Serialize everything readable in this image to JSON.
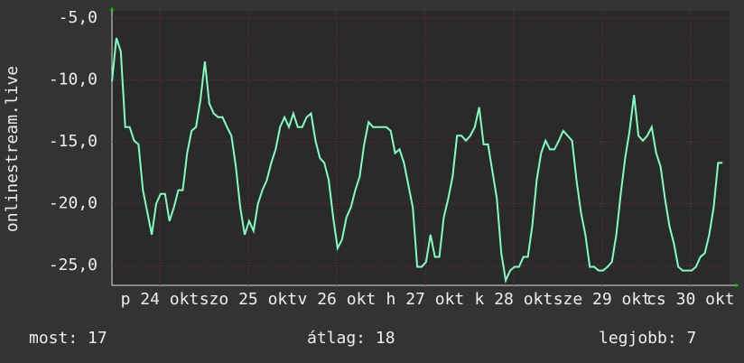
{
  "chart_data": {
    "type": "line",
    "y_label": "onlinestream.live",
    "stats": [
      "most: 17",
      "átlag: 18",
      "legjobb: 7"
    ],
    "xlim": [
      0.46,
      7.44
    ],
    "xticks": [
      {
        "value": 1,
        "label": "p 24 okt"
      },
      {
        "value": 2,
        "label": "szo 25 okt"
      },
      {
        "value": 3,
        "label": "v 26 okt"
      },
      {
        "value": 4,
        "label": "h 27 okt"
      },
      {
        "value": 5,
        "label": "k 28 okt"
      },
      {
        "value": 6,
        "label": "sze 29 okt"
      },
      {
        "value": 7,
        "label": "cs 30 okt"
      }
    ],
    "ylim": [
      -26.6,
      -4.4
    ],
    "yticks": [
      {
        "value": -5,
        "label": "-5,0"
      },
      {
        "value": -10,
        "label": "-10,0"
      },
      {
        "value": -15,
        "label": "-15,0"
      },
      {
        "value": -20,
        "label": "-20,0"
      },
      {
        "value": -25,
        "label": "-25,0"
      }
    ],
    "grid": true,
    "x": [
      0.46,
      0.51,
      0.56,
      0.61,
      0.66,
      0.71,
      0.76,
      0.81,
      0.86,
      0.91,
      0.96,
      1.01,
      1.06,
      1.11,
      1.16,
      1.21,
      1.26,
      1.31,
      1.36,
      1.41,
      1.46,
      1.51,
      1.56,
      1.61,
      1.66,
      1.71,
      1.76,
      1.81,
      1.86,
      1.91,
      1.96,
      2.01,
      2.06,
      2.11,
      2.16,
      2.21,
      2.26,
      2.31,
      2.36,
      2.41,
      2.46,
      2.51,
      2.56,
      2.61,
      2.66,
      2.71,
      2.76,
      2.81,
      2.86,
      2.91,
      2.96,
      3.01,
      3.06,
      3.11,
      3.16,
      3.21,
      3.26,
      3.31,
      3.36,
      3.41,
      3.46,
      3.51,
      3.56,
      3.61,
      3.66,
      3.71,
      3.76,
      3.81,
      3.86,
      3.91,
      3.96,
      4.01,
      4.06,
      4.11,
      4.16,
      4.21,
      4.26,
      4.31,
      4.36,
      4.41,
      4.46,
      4.51,
      4.56,
      4.61,
      4.66,
      4.71,
      4.76,
      4.81,
      4.86,
      4.91,
      4.96,
      5.01,
      5.06,
      5.11,
      5.16,
      5.21,
      5.26,
      5.31,
      5.36,
      5.41,
      5.46,
      5.51,
      5.56,
      5.61,
      5.66,
      5.71,
      5.76,
      5.81,
      5.86,
      5.91,
      5.96,
      6.01,
      6.06,
      6.11,
      6.16,
      6.21,
      6.26,
      6.31,
      6.36,
      6.41,
      6.46,
      6.51,
      6.56,
      6.61,
      6.66,
      6.71,
      6.76,
      6.81,
      6.86,
      6.91,
      6.96,
      7.01,
      7.06,
      7.11,
      7.16,
      7.21,
      7.26,
      7.31,
      7.36
    ],
    "series": [
      {
        "color": "#80ffc0",
        "values": [
          -10.1,
          -6.6,
          -7.7,
          -13.8,
          -13.8,
          -14.9,
          -15.2,
          -18.9,
          -20.7,
          -22.5,
          -20.0,
          -19.2,
          -19.2,
          -21.4,
          -20.3,
          -18.9,
          -18.9,
          -15.9,
          -14.1,
          -13.8,
          -11.6,
          -8.5,
          -11.9,
          -12.7,
          -13.0,
          -13.0,
          -13.8,
          -14.5,
          -17.0,
          -20.3,
          -22.5,
          -21.4,
          -22.2,
          -20.0,
          -18.9,
          -18.1,
          -16.7,
          -15.6,
          -13.8,
          -13.0,
          -13.8,
          -12.7,
          -13.8,
          -13.8,
          -13.0,
          -12.7,
          -14.9,
          -16.3,
          -16.7,
          -18.1,
          -21.1,
          -23.6,
          -22.9,
          -21.1,
          -20.3,
          -18.9,
          -17.8,
          -15.2,
          -13.4,
          -13.8,
          -13.8,
          -13.8,
          -13.8,
          -14.1,
          -15.9,
          -15.6,
          -16.7,
          -18.5,
          -20.3,
          -25.1,
          -25.1,
          -24.7,
          -22.5,
          -24.3,
          -24.3,
          -21.1,
          -19.6,
          -17.8,
          -14.5,
          -14.5,
          -14.9,
          -14.5,
          -13.8,
          -12.2,
          -15.2,
          -15.2,
          -17.4,
          -19.6,
          -24.0,
          -26.2,
          -25.4,
          -25.1,
          -25.1,
          -24.3,
          -24.3,
          -21.8,
          -18.1,
          -15.9,
          -14.9,
          -15.6,
          -15.6,
          -14.9,
          -14.1,
          -14.5,
          -14.9,
          -18.1,
          -20.7,
          -22.5,
          -25.1,
          -25.1,
          -25.4,
          -25.4,
          -25.1,
          -24.7,
          -22.5,
          -19.2,
          -16.3,
          -14.1,
          -11.2,
          -14.5,
          -14.9,
          -14.5,
          -13.8,
          -15.9,
          -17.0,
          -19.6,
          -21.8,
          -23.2,
          -25.1,
          -25.4,
          -25.4,
          -25.4,
          -25.1,
          -24.3,
          -24.0,
          -22.5,
          -20.3,
          -16.7,
          -16.7
        ]
      }
    ]
  }
}
